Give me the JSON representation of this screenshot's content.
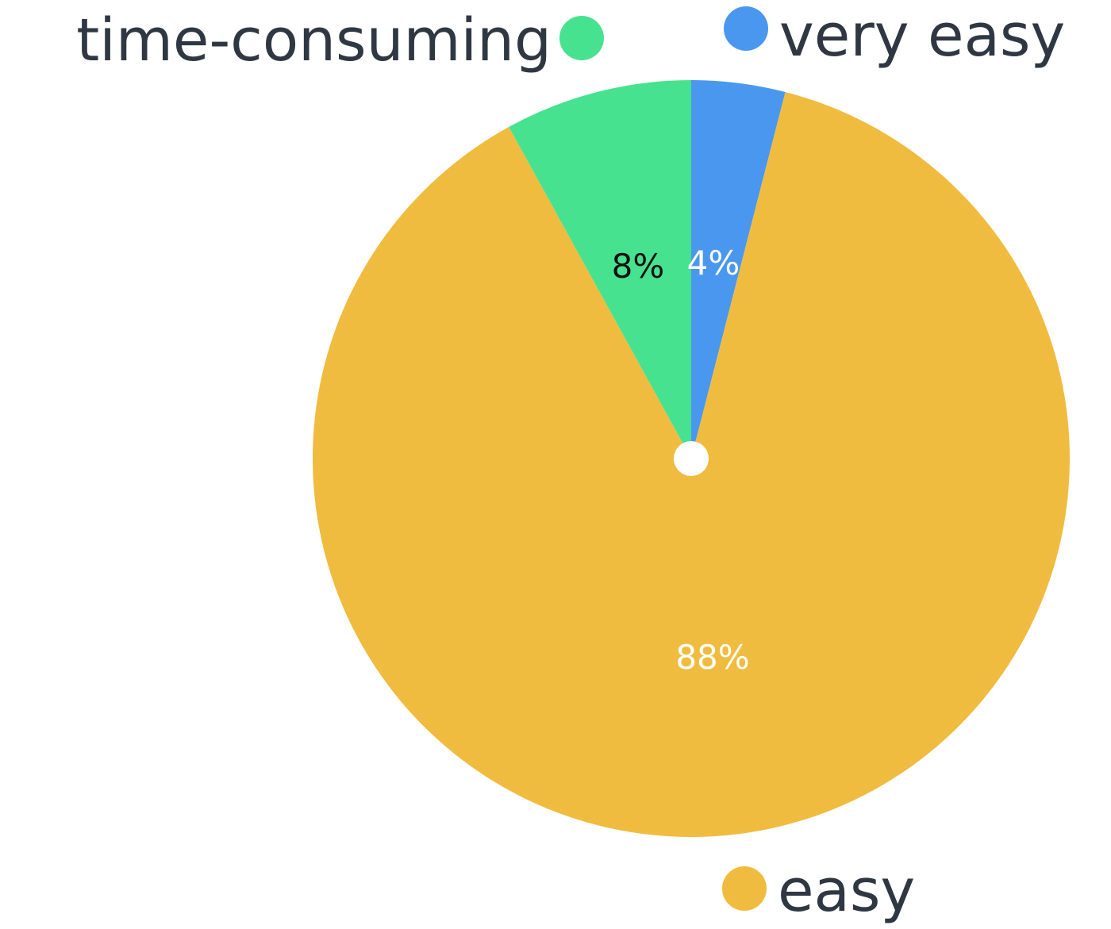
{
  "chart_data": {
    "type": "pie",
    "title": "",
    "slices": [
      {
        "label": "very easy",
        "value": 4,
        "value_label": "4%",
        "color": "#4a97f0",
        "label_color": "#ffffff"
      },
      {
        "label": "easy",
        "value": 88,
        "value_label": "88%",
        "color": "#f0bc3f",
        "label_color": "#ffffff"
      },
      {
        "label": "time-consuming",
        "value": 8,
        "value_label": "8%",
        "color": "#47e28f",
        "label_color": "#111111"
      }
    ],
    "start_angle": "12 o'clock",
    "direction": "clockwise",
    "legend": "labels-around-pie",
    "center_hole": true
  }
}
